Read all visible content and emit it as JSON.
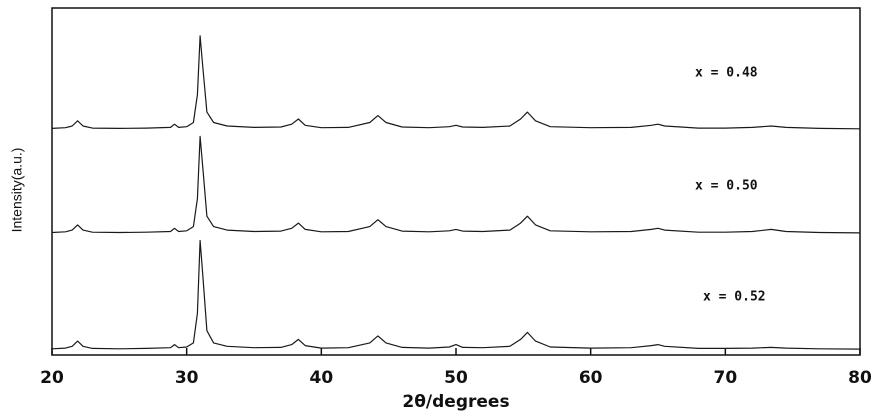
{
  "chart_data": {
    "type": "line",
    "xlabel": "2θ/degrees",
    "ylabel": "Intensity(a.u.)",
    "x": [
      20,
      21,
      21.5,
      21.9,
      22.3,
      23,
      25,
      27,
      28.8,
      29.1,
      29.4,
      30,
      30.5,
      30.8,
      31,
      31.2,
      31.5,
      32,
      33,
      35,
      37,
      37.8,
      38.3,
      38.8,
      40,
      42,
      43.6,
      44.2,
      44.8,
      46,
      48,
      49.5,
      50,
      50.5,
      52,
      54,
      54.8,
      55.3,
      55.9,
      57,
      60,
      63,
      64.5,
      65,
      65.5,
      68,
      70,
      72,
      73.4,
      74.5,
      77,
      80
    ],
    "series": [
      {
        "name": "x = 0.48",
        "color": "#1a1a1a",
        "values": [
          65.3,
          65.5,
          66,
          67.5,
          66,
          65.4,
          65.3,
          65.4,
          65.6,
          66.5,
          65.6,
          65.8,
          67,
          75,
          92,
          83,
          70,
          67,
          66,
          65.6,
          65.7,
          66.5,
          68,
          66.2,
          65.5,
          65.6,
          67,
          69,
          67,
          65.7,
          65.5,
          65.8,
          66.2,
          65.7,
          65.6,
          66,
          68,
          70,
          67.5,
          65.8,
          65.5,
          65.6,
          66.2,
          66.5,
          66,
          65.4,
          65.4,
          65.6,
          66,
          65.6,
          65.3,
          65.2
        ]
      },
      {
        "name": "x = 0.50",
        "color": "#1a1a1a",
        "values": [
          35.3,
          35.5,
          36,
          37.5,
          36,
          35.4,
          35.3,
          35.4,
          35.6,
          36.5,
          35.6,
          35.8,
          37,
          45,
          63,
          54,
          40,
          37,
          36,
          35.6,
          35.7,
          36.5,
          38,
          36.2,
          35.5,
          35.6,
          37,
          39,
          37,
          35.7,
          35.5,
          35.8,
          36.2,
          35.7,
          35.6,
          36,
          38,
          40,
          37.5,
          35.8,
          35.5,
          35.6,
          36.2,
          36.5,
          36,
          35.4,
          35.4,
          35.6,
          36.2,
          35.6,
          35.3,
          35.2
        ]
      },
      {
        "name": "x = 0.52",
        "color": "#1a1a1a",
        "values": [
          1.8,
          2,
          2.5,
          4,
          2.5,
          1.9,
          1.8,
          1.9,
          2.1,
          3,
          2.1,
          2.3,
          3.5,
          12,
          33,
          23,
          7,
          3.5,
          2.5,
          2.1,
          2.2,
          3,
          4.5,
          2.7,
          2,
          2.1,
          3.5,
          5.5,
          3.5,
          2.2,
          2,
          2.3,
          3,
          2.2,
          2.1,
          2.5,
          4.5,
          6.5,
          4,
          2.3,
          2,
          2.1,
          2.7,
          3,
          2.5,
          1.9,
          1.9,
          2,
          2.2,
          2,
          1.8,
          1.7
        ]
      }
    ],
    "xlim": [
      20,
      80
    ],
    "xticks": [
      20,
      30,
      40,
      50,
      60,
      70,
      80
    ],
    "ylim": [
      0,
      100
    ]
  }
}
